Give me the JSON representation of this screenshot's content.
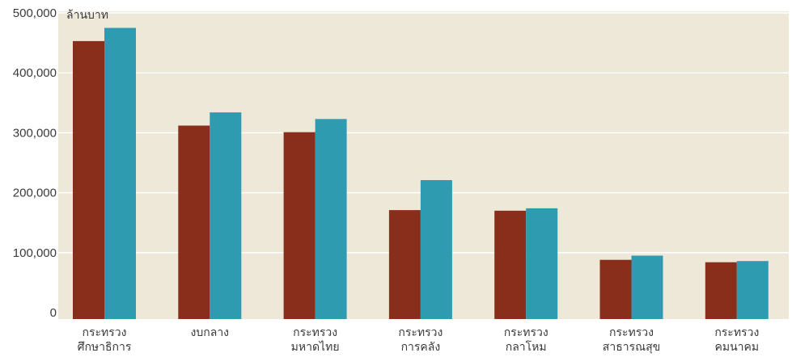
{
  "chart_data": {
    "type": "bar",
    "y_unit_label": "ล้านบาท",
    "ylim": [
      0,
      500000
    ],
    "y_ticks": [
      "0",
      "100,000",
      "200,000",
      "300,000",
      "400,000",
      "500,000"
    ],
    "y_tick_values": [
      0,
      100000,
      200000,
      300000,
      400000,
      500000
    ],
    "categories": [
      [
        "กระทรวง",
        "ศึกษาธิการ"
      ],
      [
        "งบกลาง"
      ],
      [
        "กระทรวง",
        "มหาดไทย"
      ],
      [
        "กระทรวง",
        "การคลัง"
      ],
      [
        "กระทรวง",
        "กลาโหม"
      ],
      [
        "กระทรวง",
        "สาธารณสุข"
      ],
      [
        "กระทรวง",
        "คมนาคม"
      ]
    ],
    "series": [
      {
        "color": "#8a2e1c",
        "values": [
          453000,
          312000,
          301000,
          171000,
          170000,
          88000,
          84000
        ]
      },
      {
        "color": "#2e9bb0",
        "values": [
          475000,
          334000,
          323000,
          221000,
          174000,
          95000,
          86000
        ]
      }
    ],
    "grid": true,
    "plot_background": "#ede8d8",
    "grid_color": "#ffffff"
  }
}
